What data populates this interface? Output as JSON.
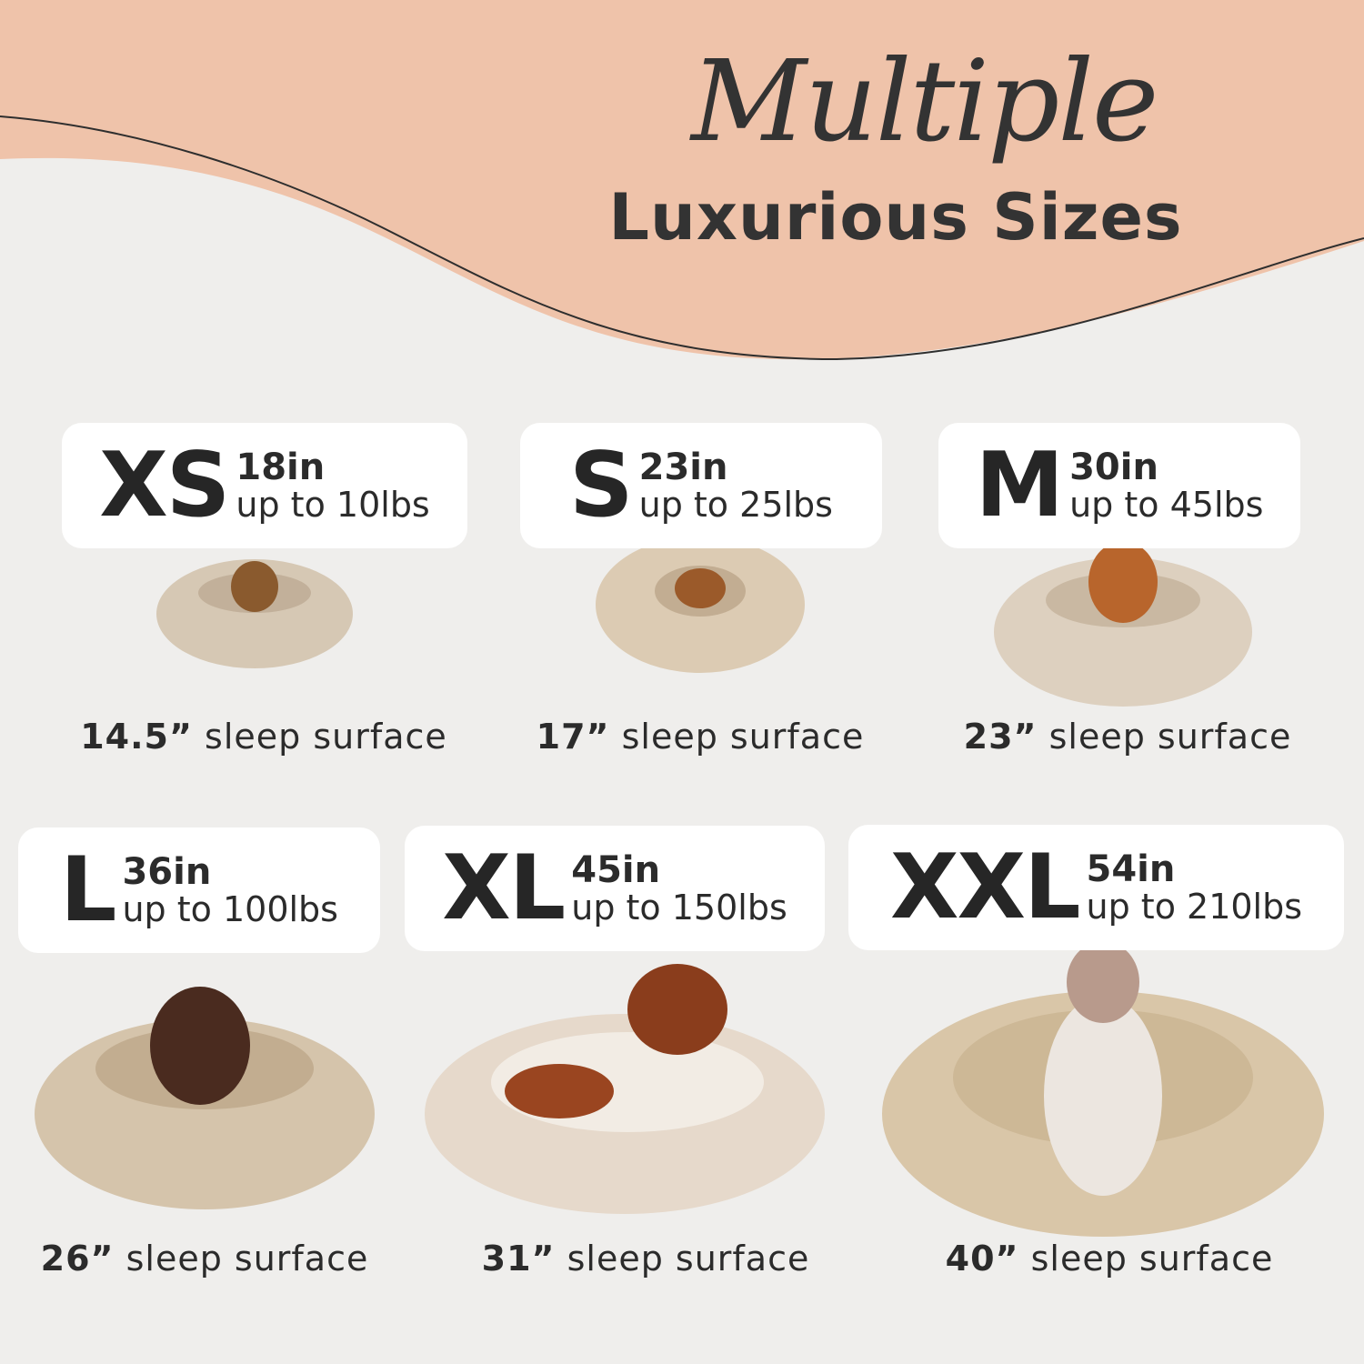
{
  "header": {
    "title_script": "Multiple",
    "title_main": "Luxurious Sizes"
  },
  "colors": {
    "peach": "#efc3aa",
    "background": "#efeeec",
    "text": "#2b2b2b",
    "bed": "#d9c9b2"
  },
  "sizes": [
    {
      "size": "XS",
      "diameter": "18in",
      "weight": "up to 10lbs",
      "sleep_size": "14.5”",
      "sleep_label": "sleep surface"
    },
    {
      "size": "S",
      "diameter": "23in",
      "weight": "up to 25lbs",
      "sleep_size": "17”",
      "sleep_label": "sleep surface"
    },
    {
      "size": "M",
      "diameter": "30in",
      "weight": "up to 45lbs",
      "sleep_size": "23”",
      "sleep_label": "sleep surface"
    },
    {
      "size": "L",
      "diameter": "36in",
      "weight": "up to 100lbs",
      "sleep_size": "26”",
      "sleep_label": "sleep surface"
    },
    {
      "size": "XL",
      "diameter": "45in",
      "weight": "up to 150lbs",
      "sleep_size": "31”",
      "sleep_label": "sleep surface"
    },
    {
      "size": "XXL",
      "diameter": "54in",
      "weight": "up to 210lbs",
      "sleep_size": "40”",
      "sleep_label": "sleep surface"
    }
  ]
}
